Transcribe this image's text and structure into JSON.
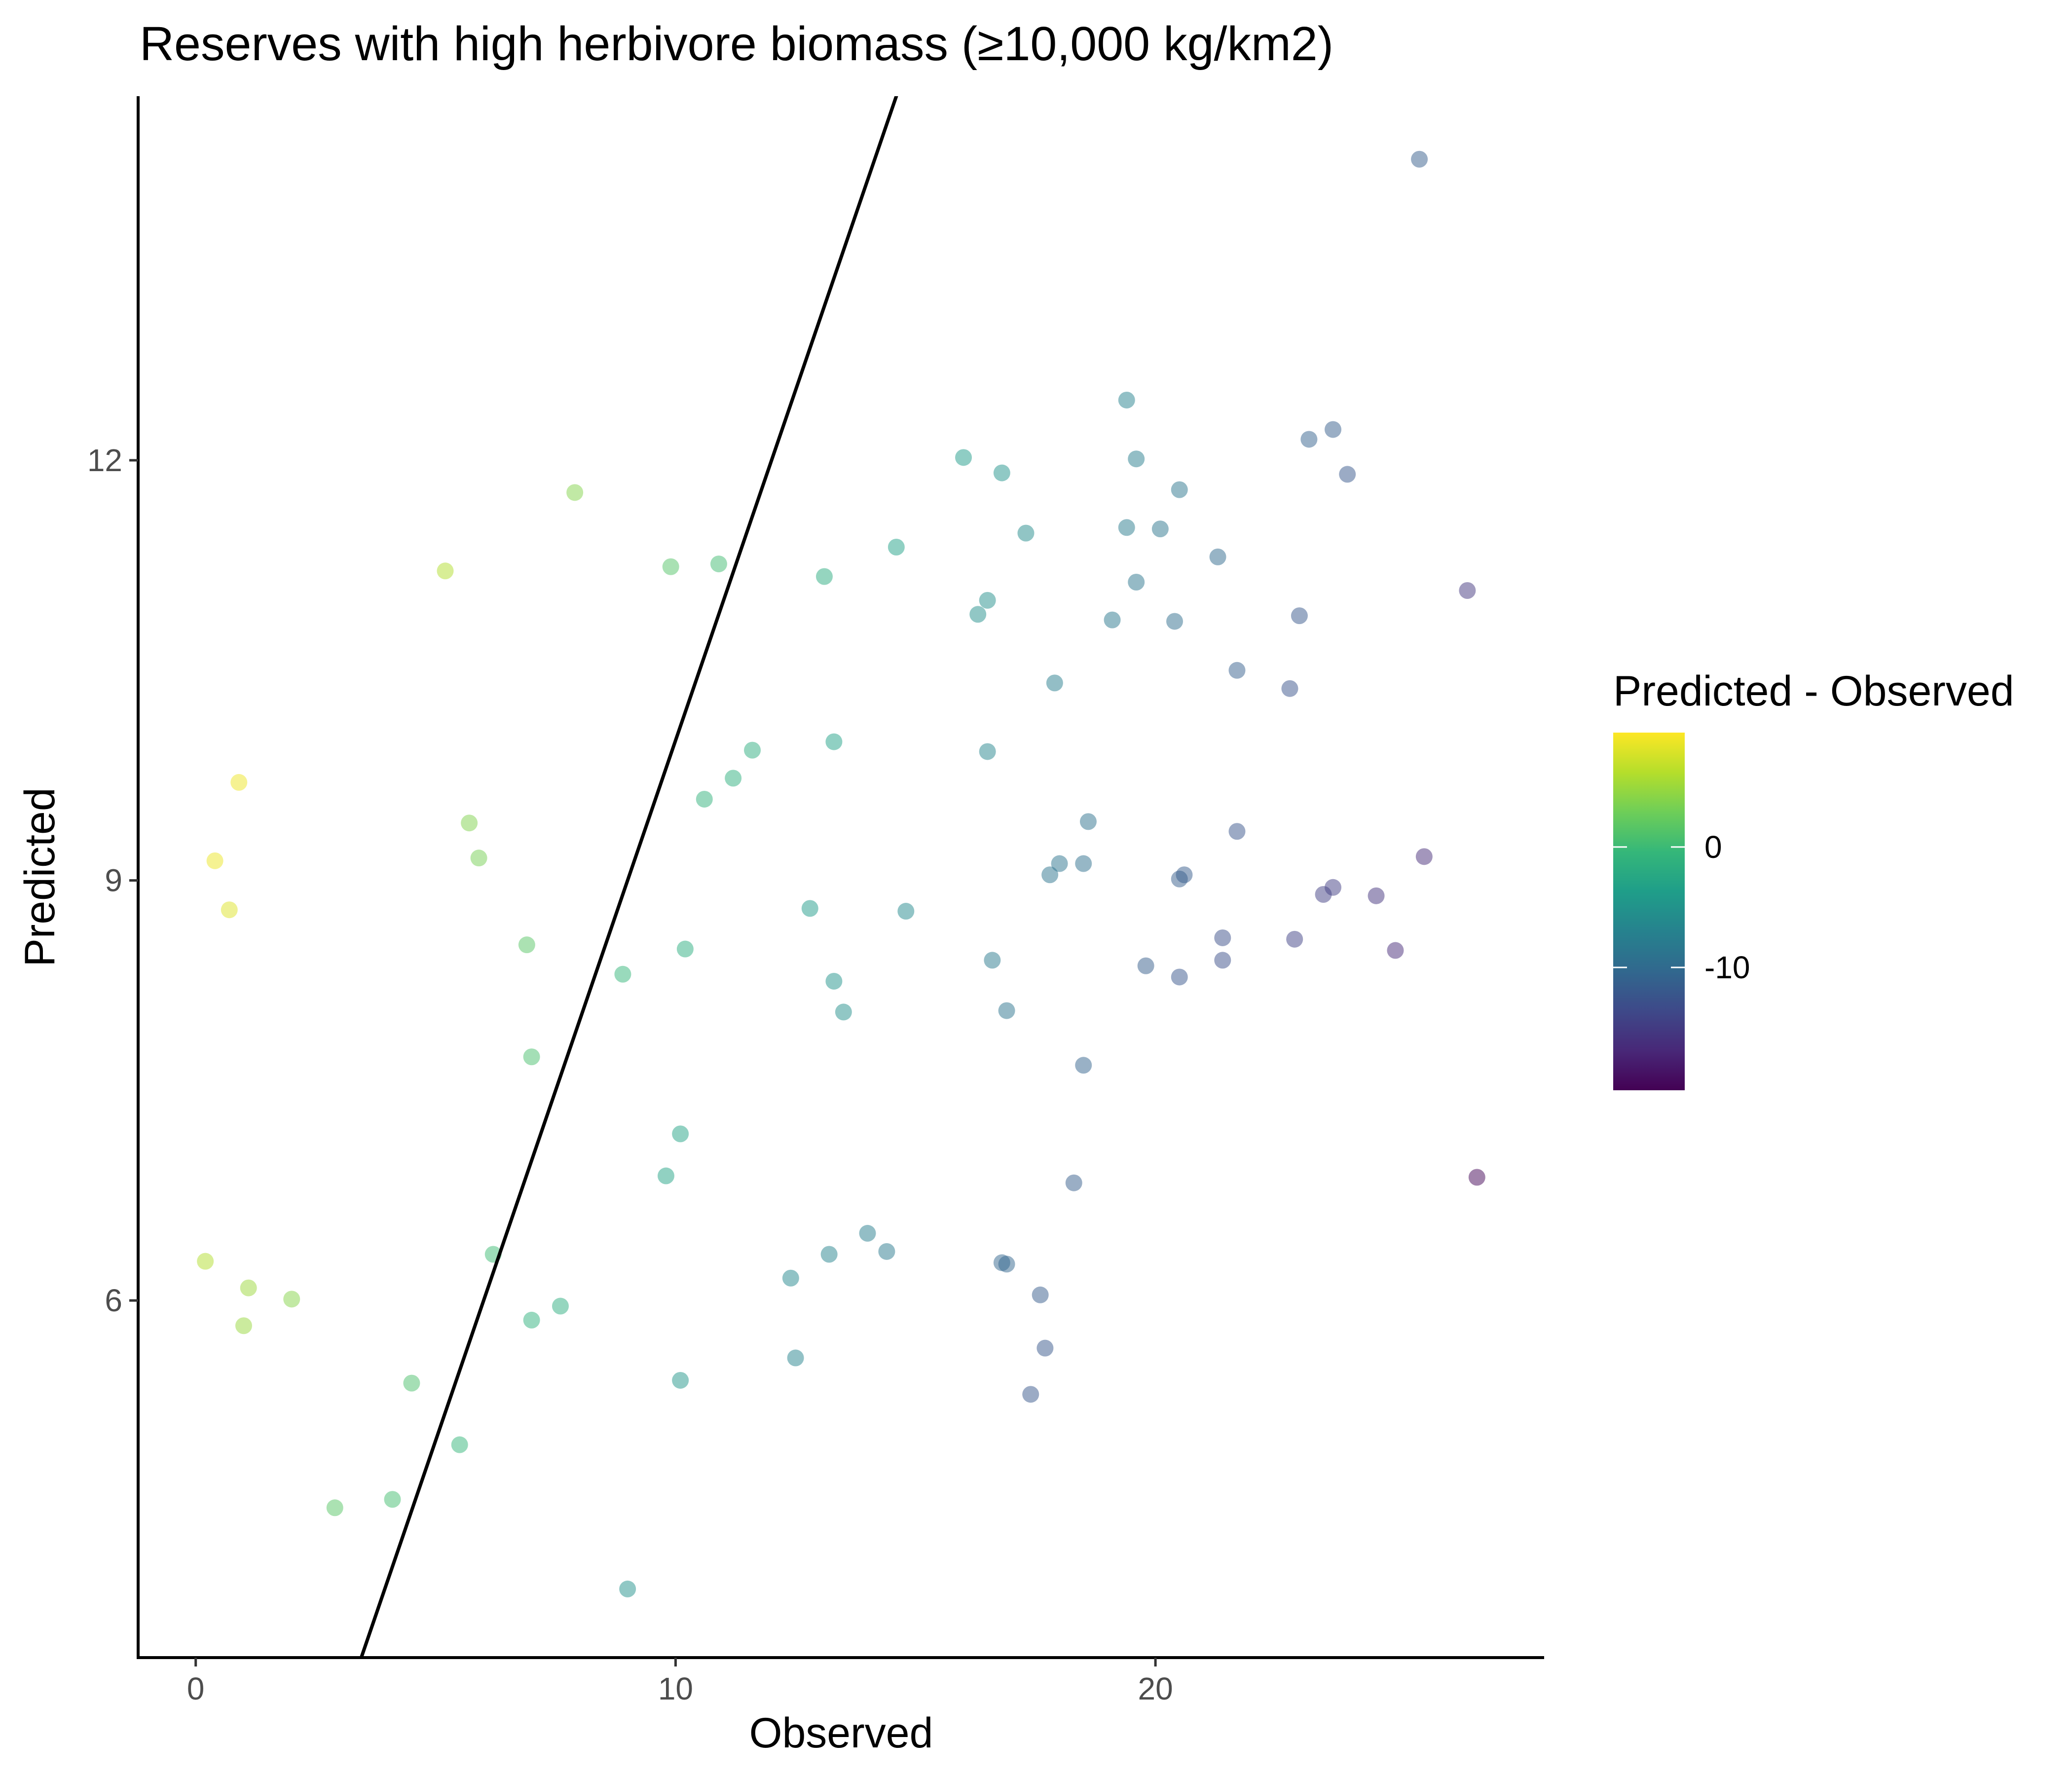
{
  "chart_data": {
    "type": "scatter",
    "title": "Reserves with high herbivore biomass (≥10,000 kg/km2)",
    "xlabel": "Observed",
    "ylabel": "Predicted",
    "xlim": [
      -1.2,
      28.1
    ],
    "ylim": [
      3.45,
      14.6
    ],
    "xticks": [
      0,
      10,
      20
    ],
    "yticks": [
      6,
      9,
      12
    ],
    "reference_line": {
      "intercept": 0,
      "slope": 1
    },
    "grid": false,
    "legend": {
      "title": "Predicted - Observed",
      "placement": "right",
      "labels": [
        {
          "value": 0,
          "text": "0"
        },
        {
          "value": -10,
          "text": "-10"
        }
      ],
      "color_range": [
        -20.2,
        9.5
      ],
      "colormap": [
        "#440154",
        "#482878",
        "#3e4989",
        "#31688e",
        "#26828e",
        "#1f9e89",
        "#35b779",
        "#6ece58",
        "#b5de2b",
        "#fde725"
      ]
    },
    "point_opacity": 0.5,
    "points": [
      {
        "x": 25.5,
        "y": 14.15
      },
      {
        "x": 19.4,
        "y": 12.43
      },
      {
        "x": 23.7,
        "y": 12.22
      },
      {
        "x": 23.2,
        "y": 12.15
      },
      {
        "x": 19.6,
        "y": 12.01
      },
      {
        "x": 16.0,
        "y": 12.02
      },
      {
        "x": 16.8,
        "y": 11.91
      },
      {
        "x": 24.0,
        "y": 11.9
      },
      {
        "x": 20.5,
        "y": 11.79
      },
      {
        "x": 7.9,
        "y": 11.77
      },
      {
        "x": 19.4,
        "y": 11.52
      },
      {
        "x": 20.1,
        "y": 11.51
      },
      {
        "x": 17.3,
        "y": 11.48
      },
      {
        "x": 14.6,
        "y": 11.38
      },
      {
        "x": 21.3,
        "y": 11.31
      },
      {
        "x": 10.9,
        "y": 11.26
      },
      {
        "x": 9.9,
        "y": 11.24
      },
      {
        "x": 5.2,
        "y": 11.21
      },
      {
        "x": 13.1,
        "y": 11.17
      },
      {
        "x": 19.6,
        "y": 11.13
      },
      {
        "x": 26.5,
        "y": 11.07
      },
      {
        "x": 16.5,
        "y": 11.0
      },
      {
        "x": 16.3,
        "y": 10.9
      },
      {
        "x": 23.0,
        "y": 10.89
      },
      {
        "x": 19.1,
        "y": 10.86
      },
      {
        "x": 20.4,
        "y": 10.85
      },
      {
        "x": 21.7,
        "y": 10.5
      },
      {
        "x": 17.9,
        "y": 10.41
      },
      {
        "x": 22.8,
        "y": 10.37
      },
      {
        "x": 13.3,
        "y": 9.99
      },
      {
        "x": 11.6,
        "y": 9.93
      },
      {
        "x": 16.5,
        "y": 9.92
      },
      {
        "x": 11.2,
        "y": 9.73
      },
      {
        "x": 0.9,
        "y": 9.7
      },
      {
        "x": 10.6,
        "y": 9.58
      },
      {
        "x": 5.7,
        "y": 9.41
      },
      {
        "x": 18.6,
        "y": 9.42
      },
      {
        "x": 21.7,
        "y": 9.35
      },
      {
        "x": 25.6,
        "y": 9.17
      },
      {
        "x": 5.9,
        "y": 9.16
      },
      {
        "x": 0.4,
        "y": 9.14
      },
      {
        "x": 18.5,
        "y": 9.12
      },
      {
        "x": 18.0,
        "y": 9.12
      },
      {
        "x": 17.8,
        "y": 9.04
      },
      {
        "x": 20.6,
        "y": 9.04
      },
      {
        "x": 20.5,
        "y": 9.01
      },
      {
        "x": 23.7,
        "y": 8.95
      },
      {
        "x": 23.5,
        "y": 8.9
      },
      {
        "x": 24.6,
        "y": 8.89
      },
      {
        "x": 0.7,
        "y": 8.79
      },
      {
        "x": 12.8,
        "y": 8.8
      },
      {
        "x": 14.8,
        "y": 8.78
      },
      {
        "x": 21.4,
        "y": 8.59
      },
      {
        "x": 22.9,
        "y": 8.58
      },
      {
        "x": 6.9,
        "y": 8.54
      },
      {
        "x": 10.2,
        "y": 8.51
      },
      {
        "x": 25.0,
        "y": 8.5
      },
      {
        "x": 16.6,
        "y": 8.43
      },
      {
        "x": 21.4,
        "y": 8.43
      },
      {
        "x": 19.8,
        "y": 8.39
      },
      {
        "x": 8.9,
        "y": 8.33
      },
      {
        "x": 20.5,
        "y": 8.31
      },
      {
        "x": 13.3,
        "y": 8.28
      },
      {
        "x": 16.9,
        "y": 8.07
      },
      {
        "x": 13.5,
        "y": 8.06
      },
      {
        "x": 7.0,
        "y": 7.74
      },
      {
        "x": 18.5,
        "y": 7.68
      },
      {
        "x": 10.1,
        "y": 7.19
      },
      {
        "x": 9.8,
        "y": 6.89
      },
      {
        "x": 26.7,
        "y": 6.88
      },
      {
        "x": 18.3,
        "y": 6.84
      },
      {
        "x": 14.0,
        "y": 6.48
      },
      {
        "x": 14.4,
        "y": 6.35
      },
      {
        "x": 13.2,
        "y": 6.33
      },
      {
        "x": 6.2,
        "y": 6.33
      },
      {
        "x": 0.2,
        "y": 6.28
      },
      {
        "x": 16.8,
        "y": 6.27
      },
      {
        "x": 16.9,
        "y": 6.26
      },
      {
        "x": 12.4,
        "y": 6.16
      },
      {
        "x": 1.1,
        "y": 6.09
      },
      {
        "x": 17.6,
        "y": 6.04
      },
      {
        "x": 2.0,
        "y": 6.01
      },
      {
        "x": 7.6,
        "y": 5.96
      },
      {
        "x": 7.0,
        "y": 5.86
      },
      {
        "x": 1.0,
        "y": 5.82
      },
      {
        "x": 17.7,
        "y": 5.66
      },
      {
        "x": 12.5,
        "y": 5.59
      },
      {
        "x": 10.1,
        "y": 5.43
      },
      {
        "x": 4.5,
        "y": 5.41
      },
      {
        "x": 17.4,
        "y": 5.33
      },
      {
        "x": 5.5,
        "y": 4.97
      },
      {
        "x": 4.1,
        "y": 4.58
      },
      {
        "x": 2.9,
        "y": 4.52
      },
      {
        "x": 9.0,
        "y": 3.94
      }
    ]
  }
}
